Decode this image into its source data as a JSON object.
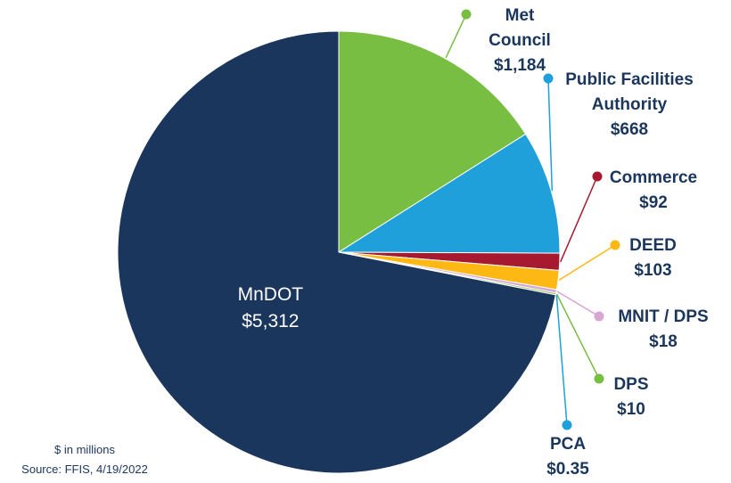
{
  "chart_data": {
    "type": "pie",
    "categories": [
      "Met Council",
      "Public Facilities Authority",
      "Commerce",
      "DEED",
      "MNIT / DPS",
      "DPS",
      "PCA",
      "MnDOT"
    ],
    "values": [
      1184,
      668,
      92,
      103,
      18,
      10,
      0.35,
      5312
    ],
    "value_labels": [
      "$1,184",
      "$668",
      "$92",
      "$103",
      "$18",
      "$10",
      "$0.35",
      "$5,312"
    ],
    "colors": [
      "#78be43",
      "#1fa0da",
      "#a6192e",
      "#fdb813",
      "#d7a6d4",
      "#78be43",
      "#1fa0da",
      "#1b365d"
    ],
    "annotations": [
      "$ in millions",
      "Source: FFIS, 4/19/2022"
    ]
  }
}
